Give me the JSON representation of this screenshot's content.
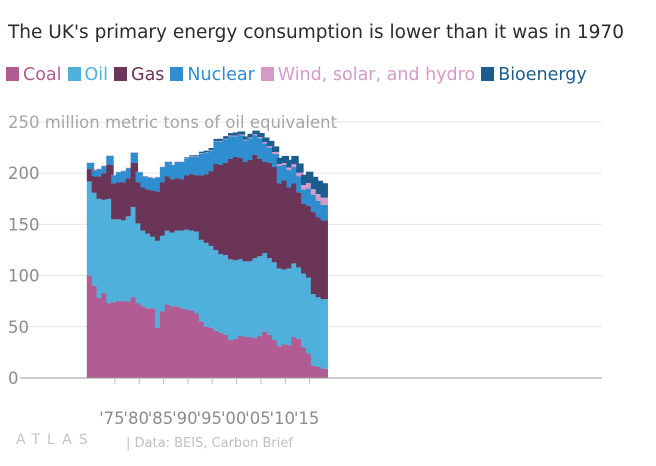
{
  "title": "The UK's primary energy consumption is lower than it was in 1970",
  "legend": [
    {
      "name": "Coal",
      "color": "#b15c92"
    },
    {
      "name": "Oil",
      "color": "#4fb0dc"
    },
    {
      "name": "Gas",
      "color": "#6b3558"
    },
    {
      "name": "Nuclear",
      "color": "#2f8ed0"
    },
    {
      "name": "Wind, solar, and hydro",
      "color": "#d49bc6"
    },
    {
      "name": "Bioenergy",
      "color": "#1c5d8f"
    }
  ],
  "footer": {
    "logo": "ATLAS",
    "source": "| Data: BEIS, Carbon Brief"
  },
  "chart_data": {
    "type": "bar",
    "stacked": true,
    "title": "The UK's primary energy consumption is lower than it was in 1970",
    "ylabel": "million metric tons of oil equivalent",
    "ylim": [
      0,
      250
    ],
    "yticks": [
      0,
      50,
      100,
      150,
      200
    ],
    "top_tick_label": "250 million metric tons of oil equivalent",
    "x_tick_labels": [
      "'75",
      "'80",
      "'85",
      "'90",
      "'95",
      "'00",
      "'05",
      "'10",
      "'15"
    ],
    "x_tick_years": [
      1975,
      1980,
      1985,
      1990,
      1995,
      2000,
      2005,
      2010,
      2015
    ],
    "grid": true,
    "x": [
      1970,
      1971,
      1972,
      1973,
      1974,
      1975,
      1976,
      1977,
      1978,
      1979,
      1980,
      1981,
      1982,
      1983,
      1984,
      1985,
      1986,
      1987,
      1988,
      1989,
      1990,
      1991,
      1992,
      1993,
      1994,
      1995,
      1996,
      1997,
      1998,
      1999,
      2000,
      2001,
      2002,
      2003,
      2004,
      2005,
      2006,
      2007,
      2008,
      2009,
      2010,
      2011,
      2012,
      2013,
      2014,
      2015,
      2016,
      2017,
      2018
    ],
    "series": [
      {
        "name": "Coal",
        "color": "#b15c92",
        "values": [
          100,
          90,
          78,
          83,
          73,
          74,
          75,
          75,
          75,
          79,
          73,
          70,
          68,
          68,
          49,
          65,
          72,
          70,
          70,
          68,
          67,
          66,
          63,
          55,
          50,
          49,
          46,
          44,
          42,
          37,
          38,
          41,
          40,
          40,
          39,
          41,
          45,
          42,
          37,
          31,
          33,
          32,
          40,
          38,
          30,
          24,
          12,
          11,
          9
        ]
      },
      {
        "name": "Oil",
        "color": "#4fb0dc",
        "values": [
          92,
          91,
          97,
          91,
          102,
          81,
          80,
          79,
          83,
          88,
          78,
          74,
          73,
          70,
          85,
          74,
          72,
          72,
          74,
          76,
          78,
          78,
          80,
          80,
          82,
          80,
          79,
          77,
          78,
          79,
          77,
          75,
          74,
          74,
          78,
          78,
          77,
          75,
          76,
          76,
          73,
          75,
          72,
          70,
          72,
          74,
          70,
          68,
          68
        ]
      },
      {
        "name": "Gas",
        "color": "#6b3558",
        "values": [
          12,
          16,
          22,
          26,
          33,
          35,
          36,
          37,
          37,
          43,
          40,
          42,
          43,
          45,
          48,
          52,
          53,
          52,
          51,
          50,
          53,
          55,
          55,
          63,
          67,
          73,
          84,
          87,
          90,
          98,
          101,
          99,
          97,
          99,
          101,
          95,
          89,
          93,
          93,
          83,
          87,
          79,
          78,
          73,
          68,
          70,
          80,
          78,
          77
        ]
      },
      {
        "name": "Nuclear",
        "color": "#2f8ed0",
        "values": [
          6,
          6,
          7,
          7,
          9,
          8,
          10,
          11,
          10,
          10,
          10,
          11,
          12,
          12,
          14,
          15,
          14,
          14,
          16,
          17,
          16,
          17,
          18,
          21,
          21,
          20,
          22,
          23,
          23,
          22,
          20,
          22,
          21,
          21,
          19,
          20,
          18,
          15,
          13,
          17,
          15,
          17,
          16,
          16,
          14,
          17,
          17,
          16,
          15
        ]
      },
      {
        "name": "Wind, solar, and hydro",
        "color": "#d49bc6",
        "values": [
          0.4,
          0.4,
          0.4,
          0.4,
          0.4,
          0.4,
          0.4,
          0.4,
          0.4,
          0.4,
          0.4,
          0.4,
          0.4,
          0.4,
          0.4,
          0.4,
          0.4,
          0.4,
          0.4,
          0.4,
          0.5,
          0.5,
          0.5,
          0.5,
          0.5,
          0.6,
          0.5,
          0.6,
          0.7,
          0.7,
          0.8,
          0.8,
          0.9,
          1.0,
          1.1,
          1.3,
          1.4,
          1.5,
          1.7,
          1.9,
          1.9,
          2.6,
          2.9,
          3.5,
          4.5,
          5.5,
          5.5,
          6.7,
          7.2
        ]
      },
      {
        "name": "Bioenergy",
        "color": "#1c5d8f",
        "values": [
          0,
          0,
          0,
          0,
          0,
          0,
          0,
          0,
          0,
          0,
          0,
          0,
          0,
          0,
          0,
          0,
          0,
          0,
          0,
          0,
          1,
          1,
          1,
          1.5,
          1.5,
          2,
          2,
          2,
          2.5,
          2.5,
          3,
          3,
          3,
          3.5,
          3.5,
          4,
          4.5,
          5,
          5.5,
          6,
          7,
          7.5,
          8,
          9,
          10,
          11,
          12,
          13,
          14
        ]
      }
    ]
  }
}
